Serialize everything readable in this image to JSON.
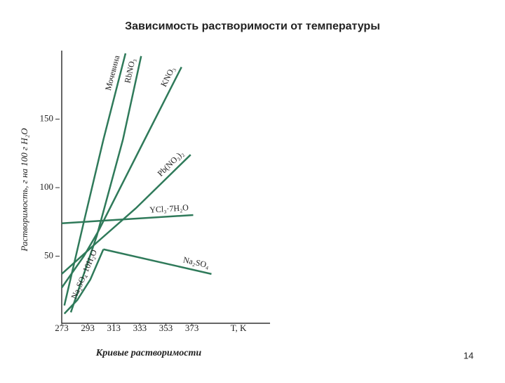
{
  "chart_data": {
    "type": "line",
    "title": "Зависимость растворимости от температуры",
    "y_label": "Растворимость, г на 100 г H₂O",
    "x_label": "T, K",
    "caption": "Кривые растворимости",
    "xlim": [
      273,
      433
    ],
    "ylim": [
      0,
      200
    ],
    "xticks": [
      273,
      293,
      313,
      333,
      353,
      373
    ],
    "yticks": [
      50,
      100,
      150
    ],
    "grid": false,
    "series": [
      {
        "name": "Мочевина",
        "color": "#2f7a5a",
        "x": [
          275,
          290,
          305,
          322
        ],
        "values": [
          14,
          75,
          135,
          198
        ]
      },
      {
        "name": "RbNO₃",
        "color": "#2f7a5a",
        "x": [
          280,
          300,
          320,
          334
        ],
        "values": [
          9,
          65,
          135,
          196
        ]
      },
      {
        "name": "KNO₃",
        "color": "#2f7a5a",
        "x": [
          273,
          290,
          301,
          318,
          334,
          365
        ],
        "values": [
          27,
          50,
          68,
          100,
          130,
          188
        ]
      },
      {
        "name": "Pb(NO₃)₂",
        "color": "#2f7a5a",
        "x": [
          273,
          300,
          330,
          372
        ],
        "values": [
          37,
          60,
          85,
          124
        ]
      },
      {
        "name": "YCl₃·7H₂O",
        "color": "#2f7a5a",
        "x": [
          273,
          374
        ],
        "values": [
          74,
          80
        ]
      },
      {
        "name": "Na₂SO₄",
        "color": "#2f7a5a",
        "x": [
          305,
          388
        ],
        "values": [
          55,
          37
        ]
      },
      {
        "name": "Na₂SO₄·10H₂O",
        "color": "#2f7a5a",
        "x": [
          275,
          285,
          295,
          305
        ],
        "values": [
          8,
          18,
          33,
          55
        ]
      }
    ]
  },
  "page_number": "14"
}
